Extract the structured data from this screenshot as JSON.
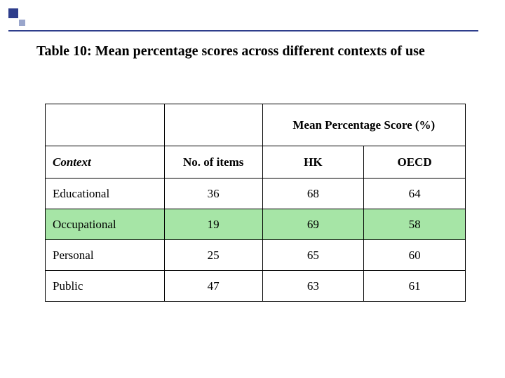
{
  "title": "Table 10: Mean percentage scores across different contexts of use",
  "table": {
    "span_header": "Mean Percentage Score (%)",
    "columns": {
      "context": "Context",
      "items": "No. of items",
      "hk": "HK",
      "oecd": "OECD"
    },
    "rows": [
      {
        "context": "Educational",
        "items": 36,
        "hk": 68,
        "oecd": 64,
        "highlight": false
      },
      {
        "context": "Occupational",
        "items": 19,
        "hk": 69,
        "oecd": 58,
        "highlight": true
      },
      {
        "context": "Personal",
        "items": 25,
        "hk": 65,
        "oecd": 60,
        "highlight": false
      },
      {
        "context": "Public",
        "items": 47,
        "hk": 63,
        "oecd": 61,
        "highlight": false
      }
    ],
    "highlight_color": "#a6e5a6",
    "border_color": "#000000",
    "background_color": "#ffffff",
    "font_family": "Times New Roman",
    "title_fontsize": 20,
    "cell_fontsize": 17
  },
  "decoration": {
    "accent_color": "#2e3e8c",
    "accent_light": "#9aa6cc"
  }
}
